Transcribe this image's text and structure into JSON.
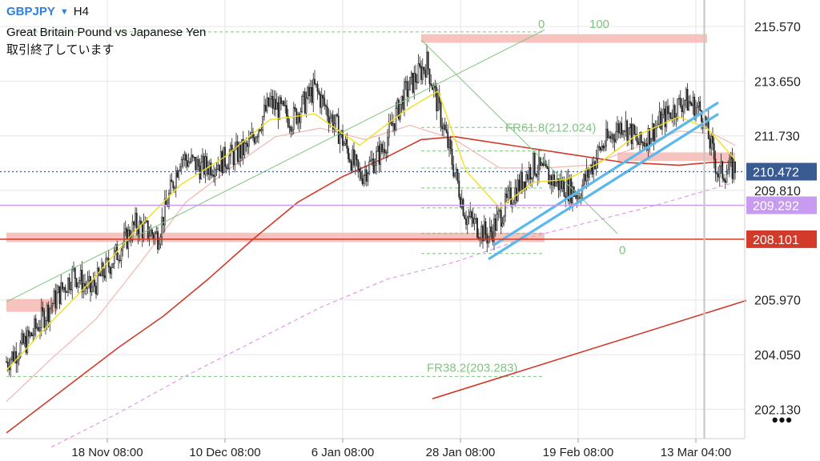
{
  "header": {
    "symbol": "GBPJPY",
    "dropdown_icon": "caret-down-icon",
    "timeframe": "H4",
    "description": "Great Britain Pound vs Japanese Yen",
    "status": "取引終了しています"
  },
  "menu": {
    "icon": "more-dots-icon",
    "label": "•••"
  },
  "colors": {
    "price": "#222222",
    "ema_fast": "#f0e020",
    "ema_mid": "#f2b6b0",
    "ema_slow": "#d23a2a",
    "sma_long": "#e19ae6",
    "grid": "#e6e6e6",
    "fib": "#7dc67d",
    "zone": "#f5b9b4",
    "channel": "#5bb8ee",
    "bid_line": "#3a5a92",
    "hline_purple": "#c79cf0",
    "hline_red": "#d23a2a"
  },
  "chart_data": {
    "type": "candlestick",
    "symbol": "GBPJPY",
    "timeframe": "H4",
    "y_ticks": [
      215.57,
      213.65,
      211.73,
      209.81,
      205.97,
      204.05,
      202.13
    ],
    "ylim": [
      201.1,
      216.5
    ],
    "x_ticks": [
      "18 Nov 08:00",
      "10 Dec 08:00",
      "6 Jan 08:00",
      "28 Jan 08:00",
      "19 Feb 08:00",
      "13 Mar 04:00"
    ],
    "price_labels": [
      {
        "value": 210.472,
        "color": "#3a5a92",
        "style": "dotted"
      },
      {
        "value": 209.292,
        "color": "#c79cf0",
        "style": "solid"
      },
      {
        "value": 208.101,
        "color": "#d23a2a",
        "style": "solid"
      }
    ],
    "close_path": [
      [
        0,
        203.8
      ],
      [
        4,
        204.6
      ],
      [
        8,
        205.8
      ],
      [
        12,
        206.9
      ],
      [
        15,
        206.3
      ],
      [
        19,
        207.4
      ],
      [
        23,
        208.6
      ],
      [
        27,
        208.2
      ],
      [
        31,
        211.0
      ],
      [
        35,
        210.6
      ],
      [
        39,
        210.9
      ],
      [
        43,
        211.3
      ],
      [
        47,
        212.9
      ],
      [
        51,
        212.3
      ],
      [
        55,
        213.4
      ],
      [
        59,
        212.0
      ],
      [
        63,
        210.3
      ],
      [
        67,
        211.2
      ],
      [
        71,
        213.2
      ],
      [
        75,
        214.3
      ],
      [
        78,
        212.0
      ],
      [
        82,
        208.9
      ],
      [
        86,
        208.2
      ],
      [
        90,
        209.6
      ],
      [
        94,
        210.7
      ],
      [
        98,
        210.1
      ],
      [
        102,
        209.7
      ],
      [
        106,
        211.3
      ],
      [
        110,
        212.2
      ],
      [
        113,
        211.4
      ],
      [
        117,
        212.3
      ],
      [
        121,
        213.0
      ],
      [
        124,
        212.6
      ],
      [
        127,
        210.4
      ],
      [
        130,
        210.6
      ]
    ],
    "ema_fast": [
      [
        0,
        203.5
      ],
      [
        8,
        205.2
      ],
      [
        15,
        206.6
      ],
      [
        23,
        208.4
      ],
      [
        31,
        210.0
      ],
      [
        39,
        211.0
      ],
      [
        47,
        212.3
      ],
      [
        55,
        212.5
      ],
      [
        63,
        211.4
      ],
      [
        71,
        212.6
      ],
      [
        77,
        213.3
      ],
      [
        82,
        210.5
      ],
      [
        88,
        209.2
      ],
      [
        94,
        210.1
      ],
      [
        100,
        210.2
      ],
      [
        106,
        210.8
      ],
      [
        112,
        211.7
      ],
      [
        120,
        212.4
      ],
      [
        125,
        212.0
      ],
      [
        130,
        210.9
      ]
    ],
    "ema_mid": [
      [
        0,
        202.4
      ],
      [
        8,
        203.9
      ],
      [
        16,
        205.3
      ],
      [
        24,
        207.3
      ],
      [
        32,
        209.4
      ],
      [
        40,
        210.6
      ],
      [
        48,
        211.7
      ],
      [
        56,
        212.0
      ],
      [
        64,
        211.6
      ],
      [
        72,
        212.1
      ],
      [
        80,
        211.6
      ],
      [
        88,
        210.6
      ],
      [
        96,
        210.6
      ],
      [
        104,
        210.7
      ],
      [
        112,
        211.3
      ],
      [
        120,
        211.9
      ],
      [
        126,
        211.8
      ],
      [
        130,
        211.4
      ]
    ],
    "ema_slow": [
      [
        0,
        201.3
      ],
      [
        10,
        202.8
      ],
      [
        20,
        204.3
      ],
      [
        28,
        205.4
      ],
      [
        36,
        206.7
      ],
      [
        44,
        208.1
      ],
      [
        52,
        209.4
      ],
      [
        60,
        210.3
      ],
      [
        68,
        211.0
      ],
      [
        74,
        211.6
      ],
      [
        80,
        211.7
      ],
      [
        90,
        211.4
      ],
      [
        100,
        211.1
      ],
      [
        110,
        210.8
      ],
      [
        120,
        210.7
      ],
      [
        126,
        210.8
      ],
      [
        130,
        210.8
      ]
    ],
    "sma_long": [
      [
        8,
        200.8
      ],
      [
        20,
        202.0
      ],
      [
        32,
        203.3
      ],
      [
        44,
        204.5
      ],
      [
        56,
        205.7
      ],
      [
        68,
        206.7
      ],
      [
        80,
        207.3
      ],
      [
        92,
        208.1
      ],
      [
        104,
        208.7
      ],
      [
        116,
        209.3
      ],
      [
        130,
        210.1
      ]
    ],
    "horizontal_zones": [
      {
        "y1": 208.33,
        "y2": 208.0,
        "x1": 0,
        "x2": 96
      },
      {
        "y1": 215.3,
        "y2": 215.0,
        "x1": 74,
        "x2": 125
      },
      {
        "y1": 206.0,
        "y2": 205.55,
        "x1": 0,
        "x2": 9
      },
      {
        "y1": 211.15,
        "y2": 210.85,
        "x1": 109,
        "x2": 130
      }
    ],
    "fib_left": {
      "label_0": "0",
      "label_100": "100",
      "fr618": "FR61.8(212.024)",
      "fr382": "FR38.2(203.283)",
      "levels": [
        215.38,
        212.024,
        211.2,
        210.6,
        209.9,
        209.2,
        208.3,
        207.6,
        203.283
      ],
      "x_start": 0,
      "x_end": 96
    },
    "fib_right": {
      "label_0": "0",
      "y_0": 207.72,
      "x_anchor": 109
    },
    "trendlines": [
      {
        "kind": "thin-green",
        "x1": 0,
        "y1": 205.9,
        "x2": 96,
        "y2": 215.45
      },
      {
        "kind": "thin-green",
        "x1": 74,
        "y1": 215.1,
        "x2": 109,
        "y2": 208.3
      },
      {
        "kind": "red",
        "x1": 76,
        "y1": 202.5,
        "x2": 132,
        "y2": 205.95
      },
      {
        "kind": "channel",
        "x1": 86,
        "y1": 207.4,
        "x2": 127,
        "y2": 212.5
      },
      {
        "kind": "channel",
        "x1": 87,
        "y1": 207.9,
        "x2": 127,
        "y2": 212.9
      }
    ]
  }
}
